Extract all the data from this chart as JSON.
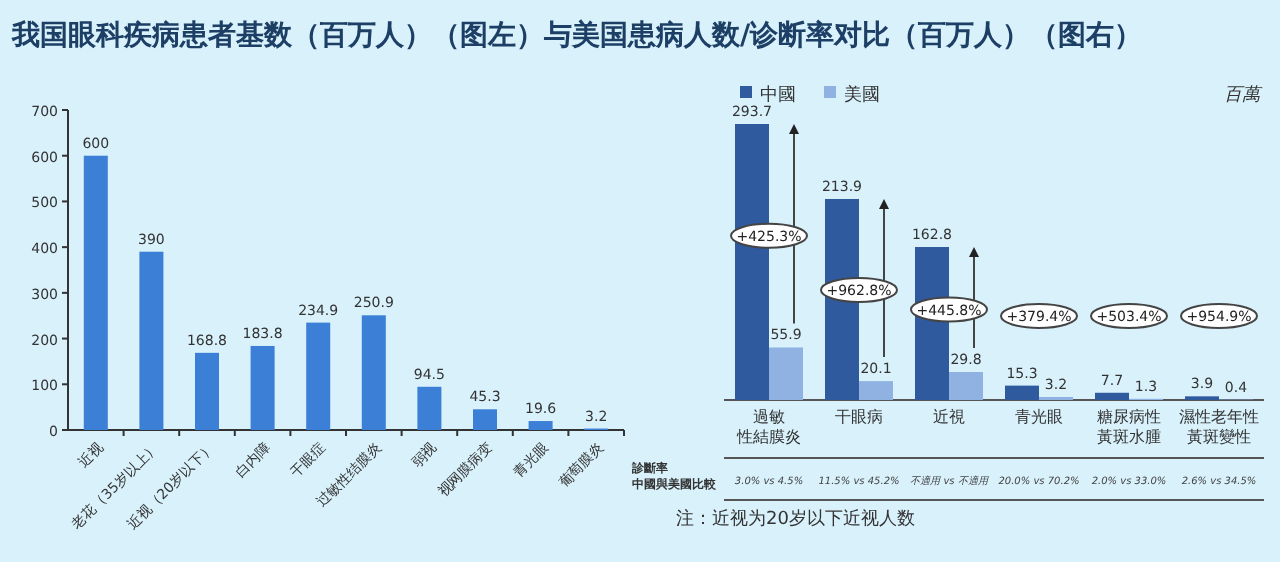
{
  "chart_data": [
    {
      "type": "bar",
      "title": "我国眼科疾病患者基数（百万人）（图左）与美国患病人数/诊断率对比（百万人）（图右）",
      "categories": [
        "近视",
        "老花（35岁以上）",
        "近视（20岁以下）",
        "白内障",
        "干眼症",
        "过敏性结膜炎",
        "弱视",
        "视网膜病变",
        "青光眼",
        "葡萄膜炎"
      ],
      "values": [
        600,
        390,
        168.8,
        183.8,
        234.9,
        250.9,
        94.5,
        45.3,
        19.6,
        3.2
      ],
      "color": "#3b7fd6",
      "ylim": [
        0,
        700
      ],
      "yticks": [
        0,
        100,
        200,
        300,
        400,
        500,
        600,
        700
      ],
      "data_labels": true
    },
    {
      "type": "bar",
      "ylabel": "百萬",
      "legend": "top left",
      "data_labels": true,
      "categories": [
        "過敏性結膜炎",
        "干眼病",
        "近視",
        "青光眼",
        "糖尿病性黃斑水腫",
        "濕性老年性黃斑變性"
      ],
      "series": [
        {
          "name": "中國",
          "color": "#2f5b9e",
          "values": [
            293.7,
            213.9,
            162.8,
            15.3,
            7.7,
            3.9
          ]
        },
        {
          "name": "美國",
          "color": "#8fb2e3",
          "values": [
            55.9,
            20.1,
            29.8,
            3.2,
            1.3,
            0.4
          ]
        }
      ],
      "annotations": [
        "+425.3%",
        "+962.8%",
        "+445.8%",
        "+379.4%",
        "+503.4%",
        "+954.9%",
        "注：近视为20岁以下近视人数"
      ]
    },
    {
      "type": "other",
      "title": "診斷率",
      "subtitle": "中國與美國比較",
      "annotations": [
        "3.0% vs 4.5%",
        "11.5% vs 45.2%",
        "不適用 vs 不適用",
        "20.0% vs 70.2%",
        "2.0% vs 33.0%",
        "2.6% vs 34.5%"
      ]
    }
  ]
}
